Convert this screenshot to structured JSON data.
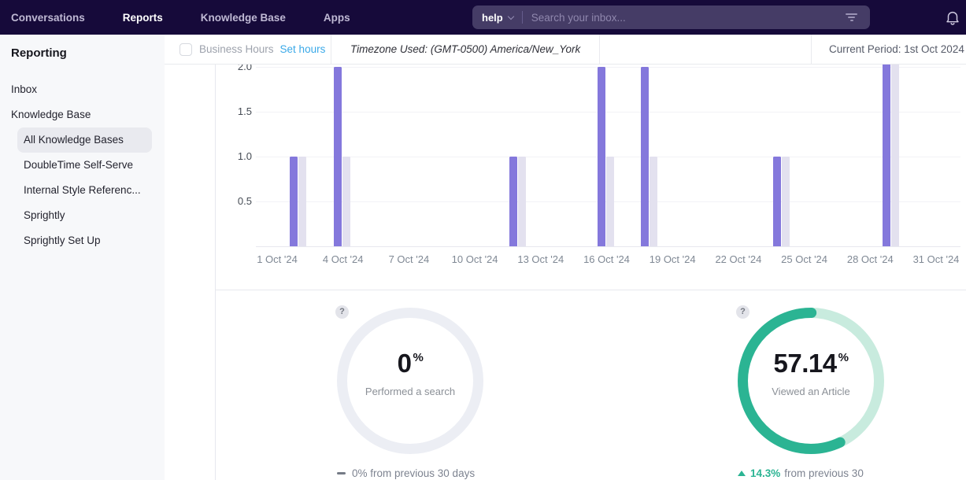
{
  "nav": {
    "items": [
      {
        "label": "Conversations",
        "active": false
      },
      {
        "label": "Reports",
        "active": true
      },
      {
        "label": "Knowledge Base",
        "active": false
      },
      {
        "label": "Apps",
        "active": false
      }
    ],
    "search": {
      "scope_label": "help",
      "placeholder": "Search your inbox..."
    },
    "icons": {
      "scope_dropdown": "chevron-down-icon",
      "filter": "filter-lines-icon",
      "notifications": "bell-icon"
    }
  },
  "sidebar": {
    "title": "Reporting",
    "items": [
      {
        "label": "Inbox",
        "level": 0,
        "selected": false
      },
      {
        "label": "Knowledge Base",
        "level": 0,
        "selected": false
      },
      {
        "label": "All Knowledge Bases",
        "level": 1,
        "selected": true
      },
      {
        "label": "DoubleTime Self-Serve",
        "level": 1,
        "selected": false
      },
      {
        "label": "Internal Style Referenc...",
        "level": 1,
        "selected": false
      },
      {
        "label": "Sprightly",
        "level": 1,
        "selected": false
      },
      {
        "label": "Sprightly Set Up",
        "level": 1,
        "selected": false
      }
    ]
  },
  "toolbar": {
    "business_hours_label": "Business Hours",
    "business_hours_checked": false,
    "set_hours_label": "Set hours",
    "timezone_text": "Timezone Used: (GMT-0500) America/New_York",
    "current_period_text": "Current Period: 1st Oct 2024 -"
  },
  "chart_data": {
    "type": "bar",
    "title": "",
    "xlabel": "",
    "ylabel": "",
    "grid": true,
    "legend": "none",
    "y_ticks": [
      0.5,
      1.0,
      1.5,
      2.0
    ],
    "ylim_visible": [
      0,
      2.05
    ],
    "x_tick_days": [
      1,
      4,
      7,
      10,
      13,
      16,
      19,
      22,
      25,
      28,
      31
    ],
    "x_tick_labels": [
      "1 Oct '24",
      "4 Oct '24",
      "7 Oct '24",
      "10 Oct '24",
      "13 Oct '24",
      "16 Oct '24",
      "19 Oct '24",
      "22 Oct '24",
      "25 Oct '24",
      "28 Oct '24",
      "31 Oct '24"
    ],
    "series": [
      {
        "name": "current-period",
        "color": "#8478DC"
      },
      {
        "name": "previous-period",
        "color": "#E3E1EF"
      }
    ],
    "points": [
      {
        "day": 2,
        "current": 1,
        "previous": 1,
        "clipped": false
      },
      {
        "day": 4,
        "current": 2,
        "previous": 1,
        "clipped": false
      },
      {
        "day": 12,
        "current": 1,
        "previous": 1,
        "clipped": false
      },
      {
        "day": 16,
        "current": 2,
        "previous": 1,
        "clipped": false
      },
      {
        "day": 18,
        "current": 2,
        "previous": 1,
        "clipped": false
      },
      {
        "day": 24,
        "current": 1,
        "previous": 1,
        "clipped": false
      },
      {
        "day": 29,
        "current": 3,
        "previous": 3,
        "clipped": true
      }
    ]
  },
  "metrics": [
    {
      "value": "0",
      "unit": "%",
      "label": "Performed a search",
      "percent": 0,
      "ring_color": "#ECEEF4",
      "arc_color": "#ECEEF4",
      "trend": "flat",
      "trend_value": "",
      "trend_text": "0% from previous 30 days",
      "help_icon": "?"
    },
    {
      "value": "57.14",
      "unit": "%",
      "label": "Viewed an Article",
      "percent": 57.14,
      "ring_color": "#C8EBDE",
      "arc_color": "#2BB493",
      "trend": "up",
      "trend_value": "14.3%",
      "trend_text": "from previous 30",
      "help_icon": "?"
    }
  ]
}
